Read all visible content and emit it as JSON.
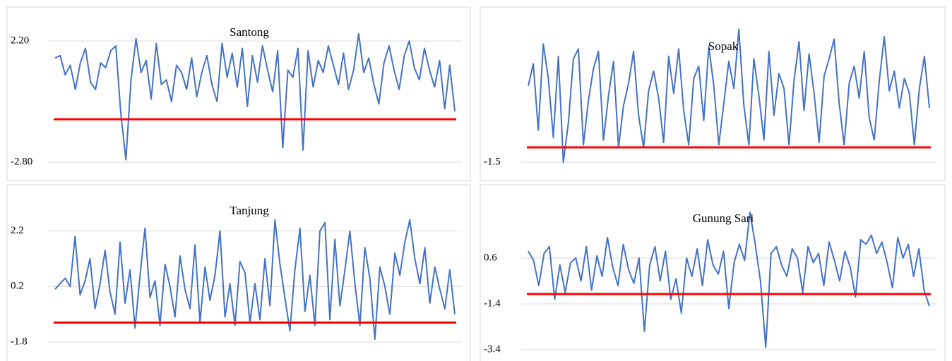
{
  "chart_data": [
    {
      "type": "line",
      "title": "Santong",
      "color": "#4472c4",
      "threshold": -1.03,
      "threshold_color": "#ff0000",
      "ylim": [
        -2.8,
        2.7
      ],
      "yticks": [
        {
          "value": 2.2,
          "label": "2.20"
        },
        {
          "value": -2.8,
          "label": "-2.80"
        }
      ],
      "values": [
        1.5,
        1.6,
        0.8,
        1.2,
        0.2,
        1.3,
        1.9,
        0.5,
        0.2,
        1.3,
        1.1,
        1.8,
        2.0,
        -0.8,
        -2.7,
        0.6,
        2.3,
        0.9,
        1.4,
        -0.2,
        2.1,
        0.4,
        0.6,
        -0.3,
        1.2,
        0.9,
        0.2,
        1.5,
        -0.1,
        0.9,
        1.6,
        0.4,
        -0.3,
        2.1,
        0.7,
        1.7,
        0.3,
        1.9,
        -0.5,
        1.6,
        0.5,
        2.0,
        1.0,
        0.1,
        1.8,
        -2.2,
        1.0,
        0.7,
        1.9,
        -2.3,
        1.8,
        0.3,
        1.4,
        0.9,
        2.0,
        1.2,
        0.4,
        1.7,
        0.2,
        1.0,
        2.5,
        0.9,
        1.5,
        0.4,
        -0.4,
        1.3,
        2.0,
        1.0,
        0.2,
        1.6,
        2.2,
        1.1,
        0.6,
        1.9,
        1.0,
        0.3,
        1.4,
        -0.6,
        1.2,
        -0.7
      ]
    },
    {
      "type": "line",
      "title": "Sopak",
      "color": "#4472c4",
      "threshold": -0.9,
      "threshold_color": "#ff0000",
      "ylim": [
        -1.5,
        4.0
      ],
      "yticks": [
        -1.5
      ],
      "values": [
        1.6,
        2.5,
        -0.2,
        3.3,
        1.9,
        -0.5,
        2.8,
        -1.5,
        0.1,
        2.7,
        3.1,
        -0.8,
        1.0,
        2.3,
        3.0,
        -0.6,
        1.2,
        2.6,
        -0.9,
        0.8,
        1.7,
        3.0,
        0.4,
        -0.9,
        1.4,
        2.2,
        1.1,
        -0.7,
        2.8,
        1.3,
        3.1,
        0.6,
        -0.8,
        1.9,
        2.4,
        0.2,
        3.2,
        1.6,
        -0.8,
        0.9,
        2.6,
        1.5,
        3.9,
        0.8,
        -0.8,
        2.7,
        1.2,
        -0.6,
        3.0,
        0.4,
        2.1,
        1.5,
        -0.8,
        1.8,
        3.4,
        0.6,
        2.9,
        1.3,
        -0.7,
        2.0,
        2.7,
        3.5,
        0.9,
        -0.8,
        1.7,
        2.4,
        1.1,
        3.0,
        0.3,
        -0.6,
        1.8,
        3.6,
        1.4,
        2.2,
        0.7,
        1.9,
        1.3,
        -0.8,
        1.5,
        2.8,
        0.7
      ]
    },
    {
      "type": "line",
      "title": "Tanjung",
      "color": "#4472c4",
      "threshold": -1.1,
      "threshold_color": "#ff0000",
      "ylim": [
        -1.8,
        2.9
      ],
      "yticks": [
        2.2,
        0.2,
        -1.8
      ],
      "values": [
        0.1,
        0.3,
        0.5,
        0.2,
        2.0,
        -0.1,
        0.4,
        1.2,
        -0.6,
        0.3,
        1.5,
        0.0,
        -0.8,
        1.8,
        -0.4,
        0.8,
        -1.3,
        0.6,
        2.3,
        -0.2,
        0.4,
        -1.2,
        1.0,
        0.2,
        -0.9,
        1.3,
        0.1,
        -0.6,
        1.7,
        -1.1,
        0.9,
        -0.3,
        0.6,
        2.2,
        -0.9,
        0.3,
        -1.2,
        1.1,
        0.7,
        -1.1,
        0.3,
        -1.0,
        1.2,
        -0.5,
        2.6,
        1.0,
        -0.2,
        -1.4,
        0.8,
        2.3,
        -0.7,
        0.6,
        -1.2,
        2.2,
        2.5,
        -1.0,
        1.9,
        -0.5,
        0.8,
        2.2,
        0.3,
        -1.2,
        1.6,
        0.5,
        -1.7,
        0.9,
        0.2,
        -0.8,
        1.4,
        0.6,
        1.8,
        2.6,
        1.2,
        0.3,
        1.6,
        -0.4,
        0.9,
        0.1,
        -0.6,
        0.8,
        -0.8
      ]
    },
    {
      "type": "line",
      "title": "Gunung Sari",
      "color": "#4472c4",
      "threshold": -0.97,
      "threshold_color": "#ff0000",
      "ylim": [
        -3.4,
        2.6
      ],
      "yticks": [
        0.6,
        -1.4,
        -3.4
      ],
      "values": [
        0.9,
        0.5,
        -0.6,
        0.8,
        1.1,
        -1.2,
        0.3,
        -0.9,
        0.4,
        0.6,
        -0.4,
        1.1,
        -0.8,
        0.7,
        -0.2,
        1.5,
        0.2,
        -0.6,
        1.2,
        0.1,
        -0.5,
        0.6,
        -2.6,
        0.3,
        1.1,
        -0.4,
        0.9,
        -1.2,
        -0.3,
        -1.8,
        0.6,
        -0.2,
        1.0,
        -0.6,
        1.4,
        0.3,
        -0.1,
        0.9,
        -1.6,
        0.4,
        1.2,
        0.5,
        2.6,
        1.2,
        -0.4,
        -3.3,
        0.8,
        1.1,
        0.3,
        -0.2,
        1.0,
        0.6,
        -0.9,
        1.1,
        0.4,
        0.8,
        -0.6,
        1.3,
        0.5,
        -0.4,
        0.9,
        0.2,
        -1.1,
        1.4,
        1.2,
        1.6,
        0.8,
        1.3,
        0.4,
        -0.7,
        1.5,
        0.6,
        1.2,
        -0.2,
        1.0,
        -0.8,
        -1.5
      ]
    }
  ]
}
